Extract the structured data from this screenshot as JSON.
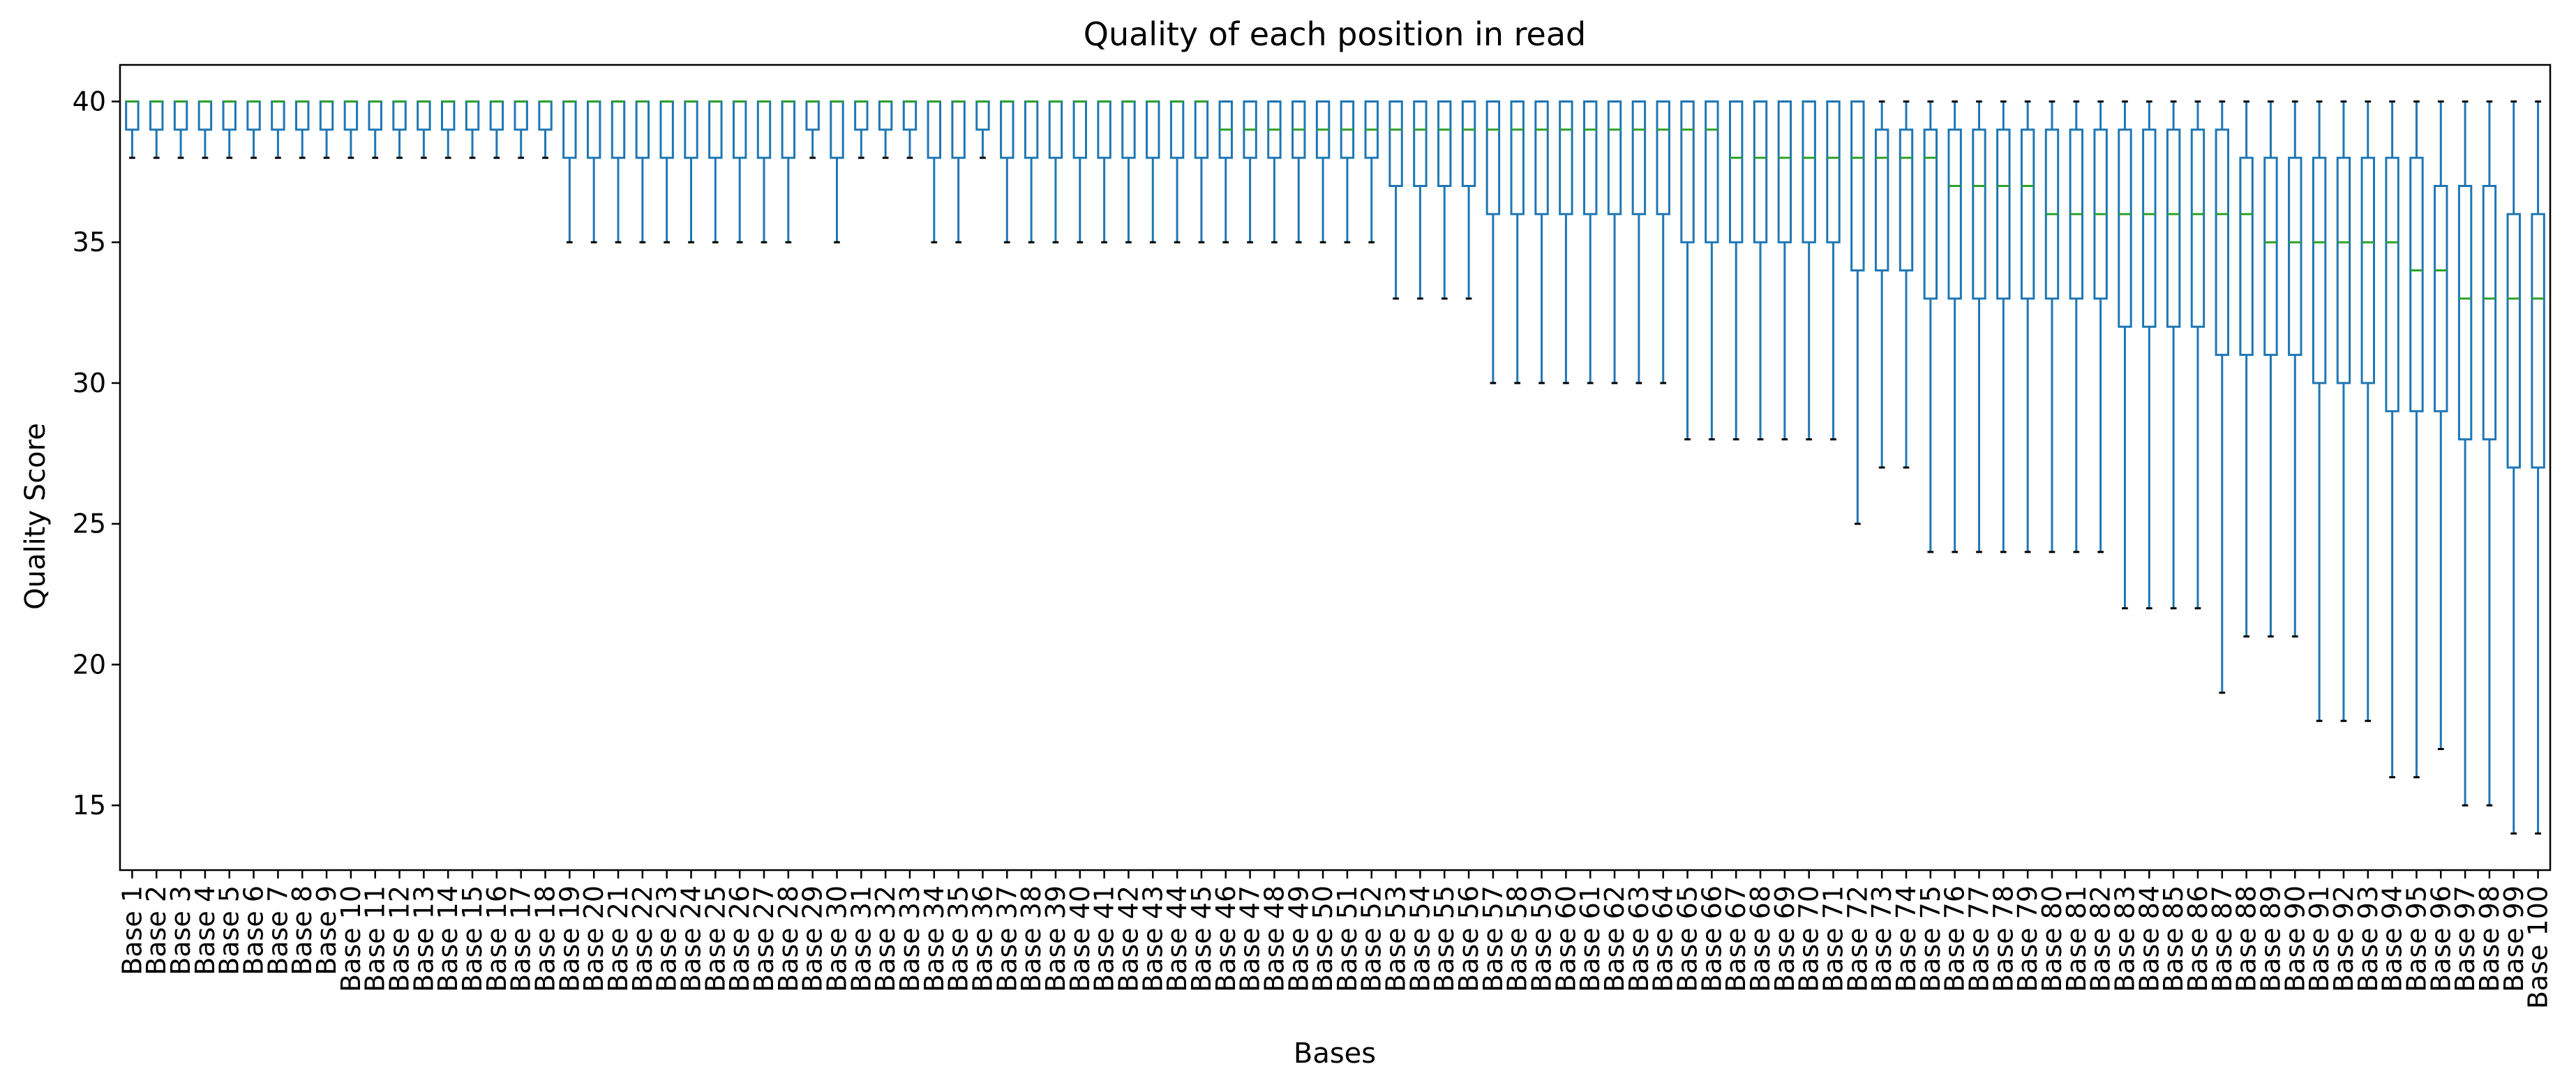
{
  "chart_data": {
    "type": "boxplot",
    "title": "Quality of each position in read",
    "xlabel": "Bases",
    "ylabel": "Quality Score",
    "ylim": [
      12.7,
      41.3
    ],
    "yticks": [
      15,
      20,
      25,
      30,
      35,
      40
    ],
    "grid": false,
    "colors": {
      "box": "#1f77b4",
      "median": "#2ca02c",
      "cap": "#000000",
      "frame": "#000000"
    },
    "categories": [
      "Base 1",
      "Base 2",
      "Base 3",
      "Base 4",
      "Base 5",
      "Base 6",
      "Base 7",
      "Base 8",
      "Base 9",
      "Base 10",
      "Base 11",
      "Base 12",
      "Base 13",
      "Base 14",
      "Base 15",
      "Base 16",
      "Base 17",
      "Base 18",
      "Base 19",
      "Base 20",
      "Base 21",
      "Base 22",
      "Base 23",
      "Base 24",
      "Base 25",
      "Base 26",
      "Base 27",
      "Base 28",
      "Base 29",
      "Base 30",
      "Base 31",
      "Base 32",
      "Base 33",
      "Base 34",
      "Base 35",
      "Base 36",
      "Base 37",
      "Base 38",
      "Base 39",
      "Base 40",
      "Base 41",
      "Base 42",
      "Base 43",
      "Base 44",
      "Base 45",
      "Base 46",
      "Base 47",
      "Base 48",
      "Base 49",
      "Base 50",
      "Base 51",
      "Base 52",
      "Base 53",
      "Base 54",
      "Base 55",
      "Base 56",
      "Base 57",
      "Base 58",
      "Base 59",
      "Base 60",
      "Base 61",
      "Base 62",
      "Base 63",
      "Base 64",
      "Base 65",
      "Base 66",
      "Base 67",
      "Base 68",
      "Base 69",
      "Base 70",
      "Base 71",
      "Base 72",
      "Base 73",
      "Base 74",
      "Base 75",
      "Base 76",
      "Base 77",
      "Base 78",
      "Base 79",
      "Base 80",
      "Base 81",
      "Base 82",
      "Base 83",
      "Base 84",
      "Base 85",
      "Base 86",
      "Base 87",
      "Base 88",
      "Base 89",
      "Base 90",
      "Base 91",
      "Base 92",
      "Base 93",
      "Base 94",
      "Base 95",
      "Base 96",
      "Base 97",
      "Base 98",
      "Base 99",
      "Base 100"
    ],
    "boxes": [
      {
        "whislo": 38,
        "q1": 39,
        "med": 40,
        "q3": 40,
        "whishi": 40
      },
      {
        "whislo": 38,
        "q1": 39,
        "med": 40,
        "q3": 40,
        "whishi": 40
      },
      {
        "whislo": 38,
        "q1": 39,
        "med": 40,
        "q3": 40,
        "whishi": 40
      },
      {
        "whislo": 38,
        "q1": 39,
        "med": 40,
        "q3": 40,
        "whishi": 40
      },
      {
        "whislo": 38,
        "q1": 39,
        "med": 40,
        "q3": 40,
        "whishi": 40
      },
      {
        "whislo": 38,
        "q1": 39,
        "med": 40,
        "q3": 40,
        "whishi": 40
      },
      {
        "whislo": 38,
        "q1": 39,
        "med": 40,
        "q3": 40,
        "whishi": 40
      },
      {
        "whislo": 38,
        "q1": 39,
        "med": 40,
        "q3": 40,
        "whishi": 40
      },
      {
        "whislo": 38,
        "q1": 39,
        "med": 40,
        "q3": 40,
        "whishi": 40
      },
      {
        "whislo": 38,
        "q1": 39,
        "med": 40,
        "q3": 40,
        "whishi": 40
      },
      {
        "whislo": 38,
        "q1": 39,
        "med": 40,
        "q3": 40,
        "whishi": 40
      },
      {
        "whislo": 38,
        "q1": 39,
        "med": 40,
        "q3": 40,
        "whishi": 40
      },
      {
        "whislo": 38,
        "q1": 39,
        "med": 40,
        "q3": 40,
        "whishi": 40
      },
      {
        "whislo": 38,
        "q1": 39,
        "med": 40,
        "q3": 40,
        "whishi": 40
      },
      {
        "whislo": 38,
        "q1": 39,
        "med": 40,
        "q3": 40,
        "whishi": 40
      },
      {
        "whislo": 38,
        "q1": 39,
        "med": 40,
        "q3": 40,
        "whishi": 40
      },
      {
        "whislo": 38,
        "q1": 39,
        "med": 40,
        "q3": 40,
        "whishi": 40
      },
      {
        "whislo": 38,
        "q1": 39,
        "med": 40,
        "q3": 40,
        "whishi": 40
      },
      {
        "whislo": 35,
        "q1": 38,
        "med": 40,
        "q3": 40,
        "whishi": 40
      },
      {
        "whislo": 35,
        "q1": 38,
        "med": 40,
        "q3": 40,
        "whishi": 40
      },
      {
        "whislo": 35,
        "q1": 38,
        "med": 40,
        "q3": 40,
        "whishi": 40
      },
      {
        "whislo": 35,
        "q1": 38,
        "med": 40,
        "q3": 40,
        "whishi": 40
      },
      {
        "whislo": 35,
        "q1": 38,
        "med": 40,
        "q3": 40,
        "whishi": 40
      },
      {
        "whislo": 35,
        "q1": 38,
        "med": 40,
        "q3": 40,
        "whishi": 40
      },
      {
        "whislo": 35,
        "q1": 38,
        "med": 40,
        "q3": 40,
        "whishi": 40
      },
      {
        "whislo": 35,
        "q1": 38,
        "med": 40,
        "q3": 40,
        "whishi": 40
      },
      {
        "whislo": 35,
        "q1": 38,
        "med": 40,
        "q3": 40,
        "whishi": 40
      },
      {
        "whislo": 35,
        "q1": 38,
        "med": 40,
        "q3": 40,
        "whishi": 40
      },
      {
        "whislo": 38,
        "q1": 39,
        "med": 40,
        "q3": 40,
        "whishi": 40
      },
      {
        "whislo": 35,
        "q1": 38,
        "med": 40,
        "q3": 40,
        "whishi": 40
      },
      {
        "whislo": 38,
        "q1": 39,
        "med": 40,
        "q3": 40,
        "whishi": 40
      },
      {
        "whislo": 38,
        "q1": 39,
        "med": 40,
        "q3": 40,
        "whishi": 40
      },
      {
        "whislo": 38,
        "q1": 39,
        "med": 40,
        "q3": 40,
        "whishi": 40
      },
      {
        "whislo": 35,
        "q1": 38,
        "med": 40,
        "q3": 40,
        "whishi": 40
      },
      {
        "whislo": 35,
        "q1": 38,
        "med": 40,
        "q3": 40,
        "whishi": 40
      },
      {
        "whislo": 38,
        "q1": 39,
        "med": 40,
        "q3": 40,
        "whishi": 40
      },
      {
        "whislo": 35,
        "q1": 38,
        "med": 40,
        "q3": 40,
        "whishi": 40
      },
      {
        "whislo": 35,
        "q1": 38,
        "med": 40,
        "q3": 40,
        "whishi": 40
      },
      {
        "whislo": 35,
        "q1": 38,
        "med": 40,
        "q3": 40,
        "whishi": 40
      },
      {
        "whislo": 35,
        "q1": 38,
        "med": 40,
        "q3": 40,
        "whishi": 40
      },
      {
        "whislo": 35,
        "q1": 38,
        "med": 40,
        "q3": 40,
        "whishi": 40
      },
      {
        "whislo": 35,
        "q1": 38,
        "med": 40,
        "q3": 40,
        "whishi": 40
      },
      {
        "whislo": 35,
        "q1": 38,
        "med": 40,
        "q3": 40,
        "whishi": 40
      },
      {
        "whislo": 35,
        "q1": 38,
        "med": 40,
        "q3": 40,
        "whishi": 40
      },
      {
        "whislo": 35,
        "q1": 38,
        "med": 40,
        "q3": 40,
        "whishi": 40
      },
      {
        "whislo": 35,
        "q1": 38,
        "med": 39,
        "q3": 40,
        "whishi": 40
      },
      {
        "whislo": 35,
        "q1": 38,
        "med": 39,
        "q3": 40,
        "whishi": 40
      },
      {
        "whislo": 35,
        "q1": 38,
        "med": 39,
        "q3": 40,
        "whishi": 40
      },
      {
        "whislo": 35,
        "q1": 38,
        "med": 39,
        "q3": 40,
        "whishi": 40
      },
      {
        "whislo": 35,
        "q1": 38,
        "med": 39,
        "q3": 40,
        "whishi": 40
      },
      {
        "whislo": 35,
        "q1": 38,
        "med": 39,
        "q3": 40,
        "whishi": 40
      },
      {
        "whislo": 35,
        "q1": 38,
        "med": 39,
        "q3": 40,
        "whishi": 40
      },
      {
        "whislo": 33,
        "q1": 37,
        "med": 39,
        "q3": 40,
        "whishi": 40
      },
      {
        "whislo": 33,
        "q1": 37,
        "med": 39,
        "q3": 40,
        "whishi": 40
      },
      {
        "whislo": 33,
        "q1": 37,
        "med": 39,
        "q3": 40,
        "whishi": 40
      },
      {
        "whislo": 33,
        "q1": 37,
        "med": 39,
        "q3": 40,
        "whishi": 40
      },
      {
        "whislo": 30,
        "q1": 36,
        "med": 39,
        "q3": 40,
        "whishi": 40
      },
      {
        "whislo": 30,
        "q1": 36,
        "med": 39,
        "q3": 40,
        "whishi": 40
      },
      {
        "whislo": 30,
        "q1": 36,
        "med": 39,
        "q3": 40,
        "whishi": 40
      },
      {
        "whislo": 30,
        "q1": 36,
        "med": 39,
        "q3": 40,
        "whishi": 40
      },
      {
        "whislo": 30,
        "q1": 36,
        "med": 39,
        "q3": 40,
        "whishi": 40
      },
      {
        "whislo": 30,
        "q1": 36,
        "med": 39,
        "q3": 40,
        "whishi": 40
      },
      {
        "whislo": 30,
        "q1": 36,
        "med": 39,
        "q3": 40,
        "whishi": 40
      },
      {
        "whislo": 30,
        "q1": 36,
        "med": 39,
        "q3": 40,
        "whishi": 40
      },
      {
        "whislo": 28,
        "q1": 35,
        "med": 39,
        "q3": 40,
        "whishi": 40
      },
      {
        "whislo": 28,
        "q1": 35,
        "med": 39,
        "q3": 40,
        "whishi": 40
      },
      {
        "whislo": 28,
        "q1": 35,
        "med": 38,
        "q3": 40,
        "whishi": 40
      },
      {
        "whislo": 28,
        "q1": 35,
        "med": 38,
        "q3": 40,
        "whishi": 40
      },
      {
        "whislo": 28,
        "q1": 35,
        "med": 38,
        "q3": 40,
        "whishi": 40
      },
      {
        "whislo": 28,
        "q1": 35,
        "med": 38,
        "q3": 40,
        "whishi": 40
      },
      {
        "whislo": 28,
        "q1": 35,
        "med": 38,
        "q3": 40,
        "whishi": 40
      },
      {
        "whislo": 25,
        "q1": 34,
        "med": 38,
        "q3": 40,
        "whishi": 40
      },
      {
        "whislo": 27,
        "q1": 34,
        "med": 38,
        "q3": 39,
        "whishi": 40
      },
      {
        "whislo": 27,
        "q1": 34,
        "med": 38,
        "q3": 39,
        "whishi": 40
      },
      {
        "whislo": 24,
        "q1": 33,
        "med": 38,
        "q3": 39,
        "whishi": 40
      },
      {
        "whislo": 24,
        "q1": 33,
        "med": 37,
        "q3": 39,
        "whishi": 40
      },
      {
        "whislo": 24,
        "q1": 33,
        "med": 37,
        "q3": 39,
        "whishi": 40
      },
      {
        "whislo": 24,
        "q1": 33,
        "med": 37,
        "q3": 39,
        "whishi": 40
      },
      {
        "whislo": 24,
        "q1": 33,
        "med": 37,
        "q3": 39,
        "whishi": 40
      },
      {
        "whislo": 24,
        "q1": 33,
        "med": 36,
        "q3": 39,
        "whishi": 40
      },
      {
        "whislo": 24,
        "q1": 33,
        "med": 36,
        "q3": 39,
        "whishi": 40
      },
      {
        "whislo": 24,
        "q1": 33,
        "med": 36,
        "q3": 39,
        "whishi": 40
      },
      {
        "whislo": 22,
        "q1": 32,
        "med": 36,
        "q3": 39,
        "whishi": 40
      },
      {
        "whislo": 22,
        "q1": 32,
        "med": 36,
        "q3": 39,
        "whishi": 40
      },
      {
        "whislo": 22,
        "q1": 32,
        "med": 36,
        "q3": 39,
        "whishi": 40
      },
      {
        "whislo": 22,
        "q1": 32,
        "med": 36,
        "q3": 39,
        "whishi": 40
      },
      {
        "whislo": 19,
        "q1": 31,
        "med": 36,
        "q3": 39,
        "whishi": 40
      },
      {
        "whislo": 21,
        "q1": 31,
        "med": 36,
        "q3": 38,
        "whishi": 40
      },
      {
        "whislo": 21,
        "q1": 31,
        "med": 35,
        "q3": 38,
        "whishi": 40
      },
      {
        "whislo": 21,
        "q1": 31,
        "med": 35,
        "q3": 38,
        "whishi": 40
      },
      {
        "whislo": 18,
        "q1": 30,
        "med": 35,
        "q3": 38,
        "whishi": 40
      },
      {
        "whislo": 18,
        "q1": 30,
        "med": 35,
        "q3": 38,
        "whishi": 40
      },
      {
        "whislo": 18,
        "q1": 30,
        "med": 35,
        "q3": 38,
        "whishi": 40
      },
      {
        "whislo": 16,
        "q1": 29,
        "med": 35,
        "q3": 38,
        "whishi": 40
      },
      {
        "whislo": 16,
        "q1": 29,
        "med": 34,
        "q3": 38,
        "whishi": 40
      },
      {
        "whislo": 17,
        "q1": 29,
        "med": 34,
        "q3": 37,
        "whishi": 40
      },
      {
        "whislo": 15,
        "q1": 28,
        "med": 33,
        "q3": 37,
        "whishi": 40
      },
      {
        "whislo": 15,
        "q1": 28,
        "med": 33,
        "q3": 37,
        "whishi": 40
      },
      {
        "whislo": 14,
        "q1": 27,
        "med": 33,
        "q3": 36,
        "whishi": 40
      },
      {
        "whislo": 14,
        "q1": 27,
        "med": 33,
        "q3": 36,
        "whishi": 40
      }
    ]
  }
}
